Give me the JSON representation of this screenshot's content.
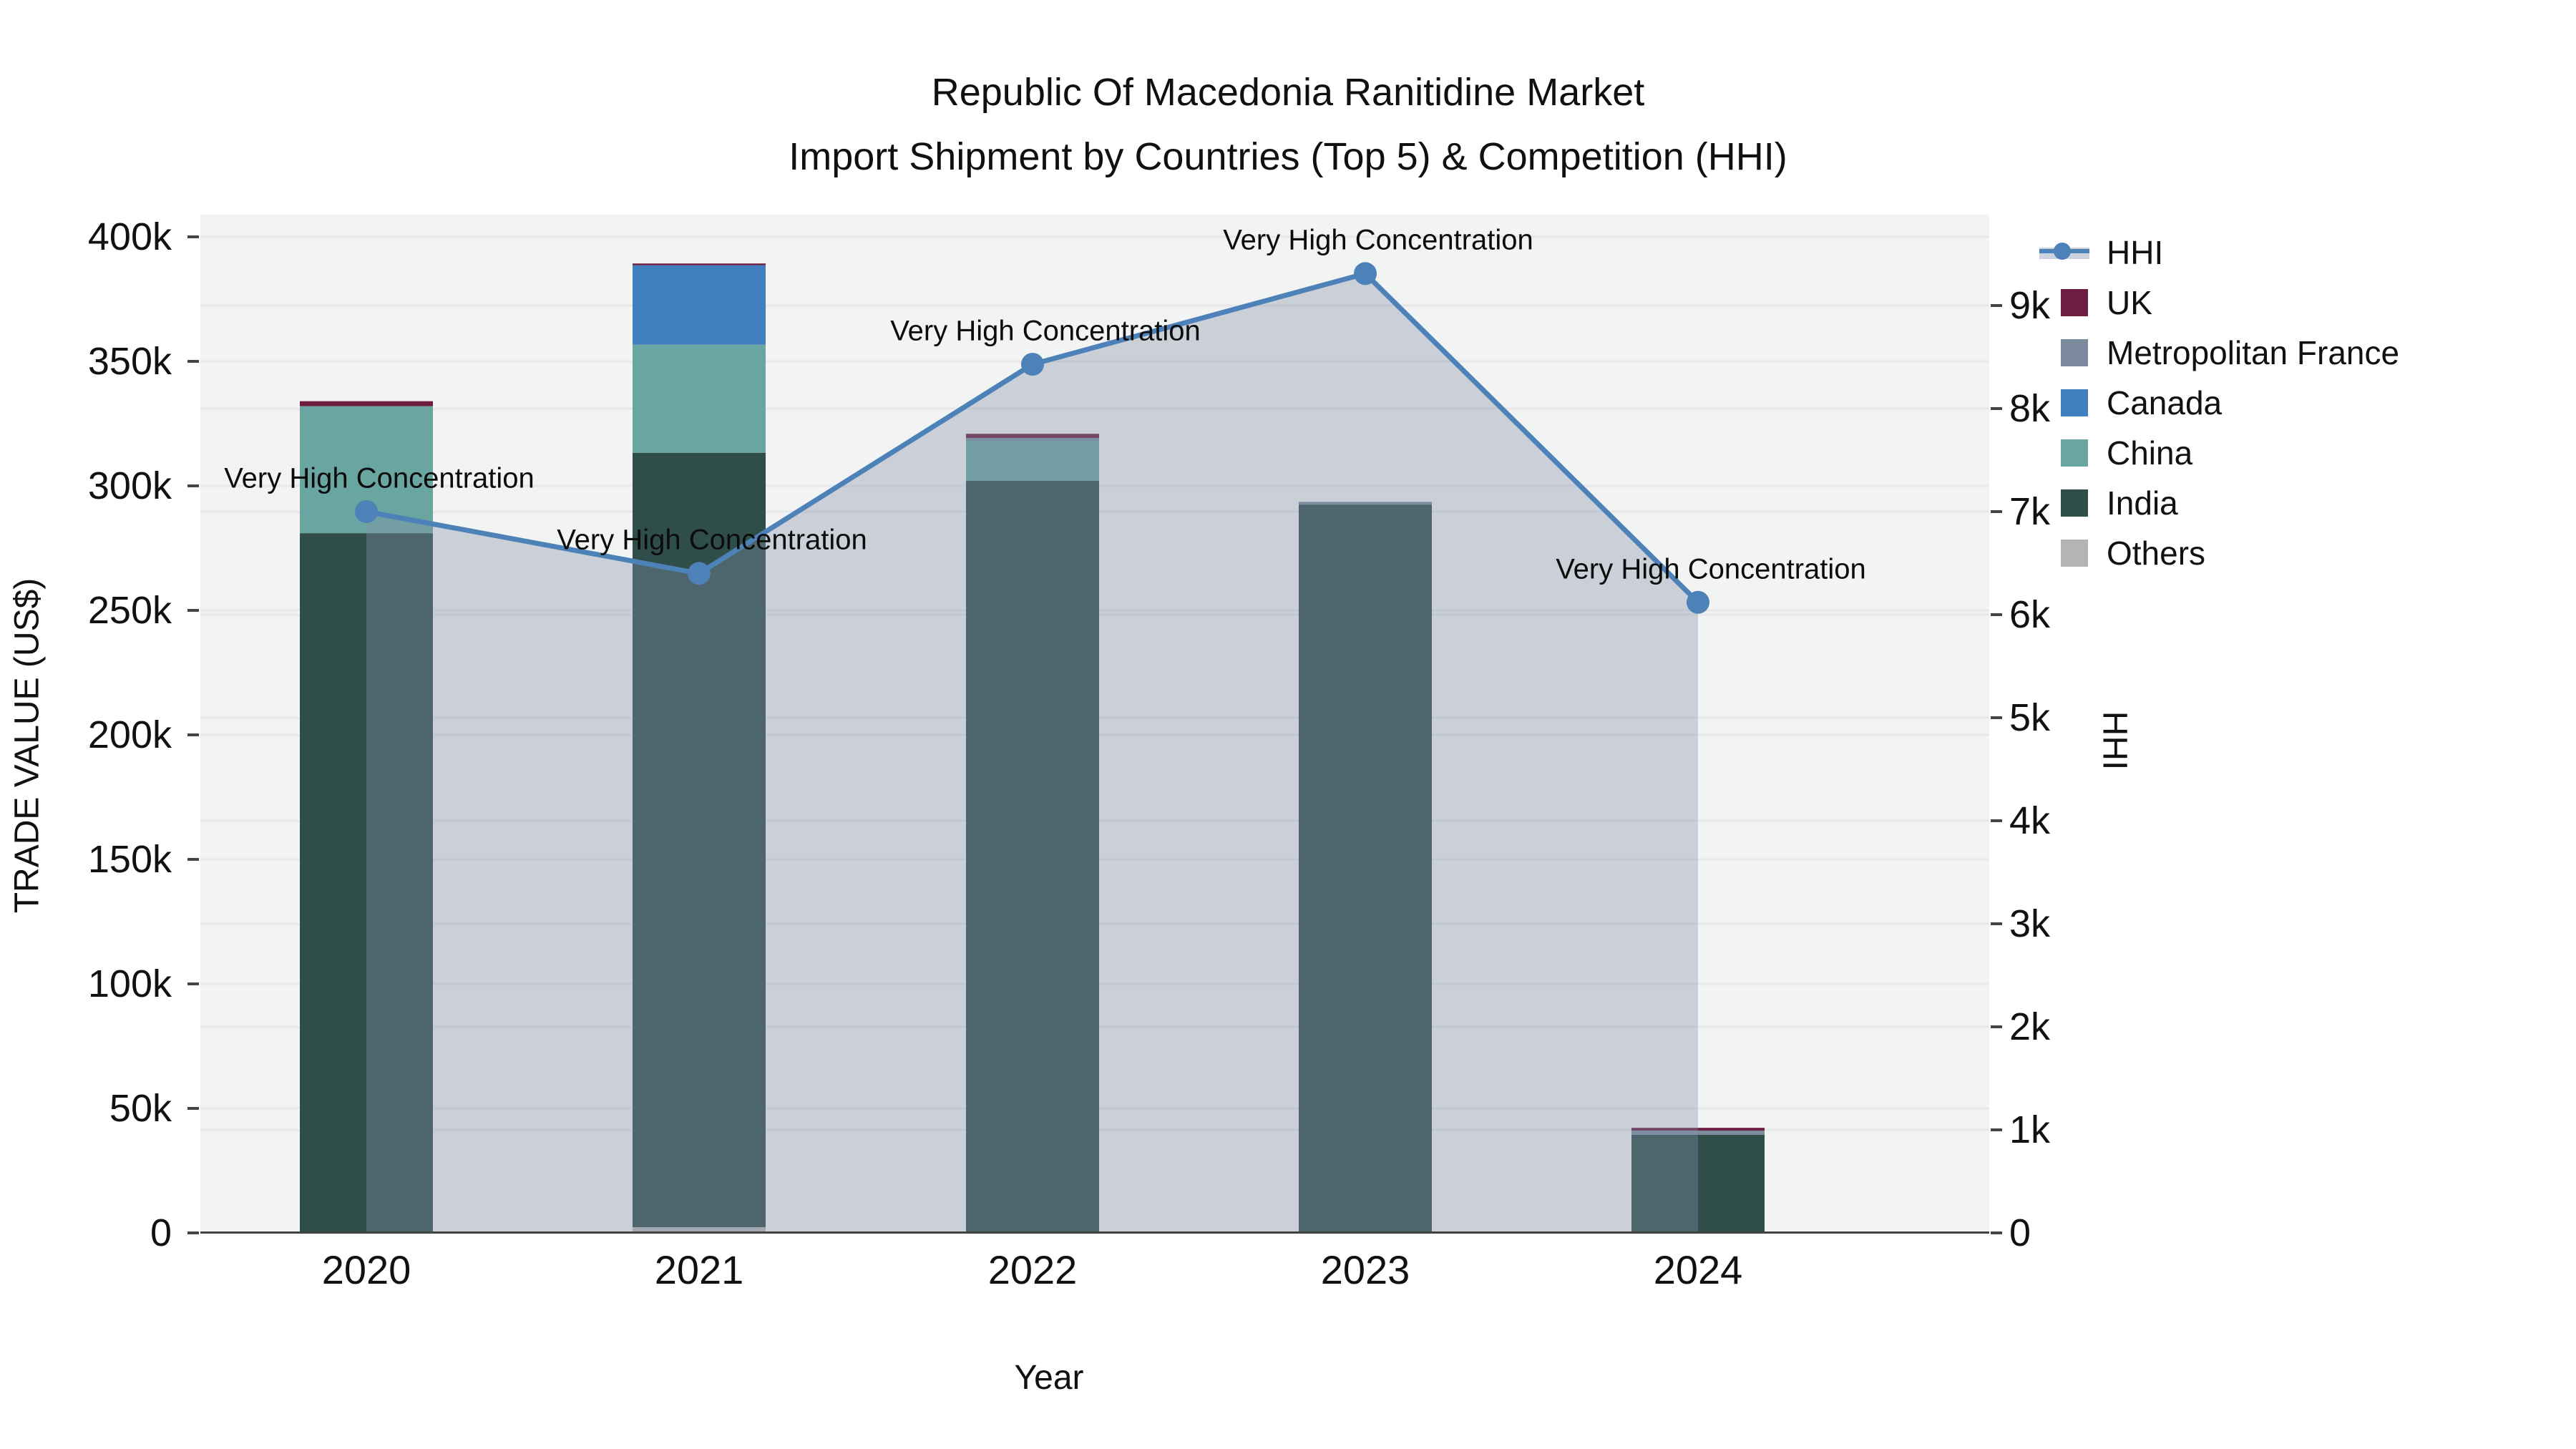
{
  "title": {
    "line1": "Republic Of Macedonia Ranitidine Market",
    "line2": "Import Shipment by Countries (Top 5) & Competition (HHI)"
  },
  "axes": {
    "x": {
      "title": "Year",
      "ticks": [
        "2020",
        "2021",
        "2022",
        "2023",
        "2024"
      ]
    },
    "y_left": {
      "title": "TRADE VALUE (US$)",
      "ticks": [
        "0",
        "50k",
        "100k",
        "150k",
        "200k",
        "250k",
        "300k",
        "350k",
        "400k"
      ]
    },
    "y_right": {
      "title": "HHI",
      "ticks": [
        "0",
        "1k",
        "2k",
        "3k",
        "4k",
        "5k",
        "6k",
        "7k",
        "8k",
        "9k"
      ]
    }
  },
  "annotation_text": "Very High Concentration",
  "legend": [
    {
      "label": "HHI",
      "color": "#4d82b8",
      "type": "line"
    },
    {
      "label": "UK",
      "color": "#6d1d3f",
      "type": "square"
    },
    {
      "label": "Metropolitan France",
      "color": "#7b8a9c",
      "type": "square"
    },
    {
      "label": "Canada",
      "color": "#4180bf",
      "type": "square"
    },
    {
      "label": "China",
      "color": "#6aa6a1",
      "type": "square"
    },
    {
      "label": "India",
      "color": "#2f4e4a",
      "type": "square"
    },
    {
      "label": "Others",
      "color": "#b4b4b6",
      "type": "square"
    }
  ],
  "colors": {
    "plot_bg": "#f2f3f3",
    "grid": "#e6e8e9",
    "axis_line": "#424242",
    "hhi_line": "#4d82b8",
    "hhi_area_fill": "rgba(131,143,168,0.36)"
  },
  "chart_data": {
    "type": "bar",
    "subtype": "stacked-bars-with-line",
    "categories": [
      "2020",
      "2021",
      "2022",
      "2023",
      "2024"
    ],
    "bar_series": [
      {
        "name": "Others",
        "color": "#b4b4b6",
        "values": [
          0,
          2300,
          0,
          0,
          0
        ]
      },
      {
        "name": "India",
        "color": "#2f4e4a",
        "values": [
          281000,
          311000,
          302000,
          292500,
          39400
        ]
      },
      {
        "name": "China",
        "color": "#6aa6a1",
        "values": [
          51000,
          43400,
          16100,
          0,
          0
        ]
      },
      {
        "name": "Canada",
        "color": "#4180bf",
        "values": [
          0,
          31900,
          0,
          0,
          0
        ]
      },
      {
        "name": "Metropolitan France",
        "color": "#7b8a9c",
        "values": [
          0,
          0,
          1100,
          1100,
          1700
        ]
      },
      {
        "name": "UK",
        "color": "#6d1d3f",
        "values": [
          2000,
          700,
          1700,
          0,
          1100
        ]
      }
    ],
    "line_series": {
      "name": "HHI",
      "values": [
        7000,
        6400,
        8430,
        9310,
        6120
      ],
      "axis": "right"
    },
    "bar_totals_approx": [
      334000,
      389300,
      320900,
      293600,
      42200
    ],
    "title": "Republic Of Macedonia Ranitidine Market — Import Shipment by Countries (Top 5) & Competition (HHI)",
    "xlabel": "Year",
    "ylabel_left": "TRADE VALUE (US$)",
    "ylabel_right": "HHI",
    "ylim_left": [
      0,
      400000
    ],
    "ylim_right": [
      0,
      9000
    ],
    "grid": "both-axes-light",
    "legend_position": "right",
    "annotations": [
      {
        "category": "2020",
        "text": "Very High Concentration"
      },
      {
        "category": "2021",
        "text": "Very High Concentration"
      },
      {
        "category": "2022",
        "text": "Very High Concentration"
      },
      {
        "category": "2023",
        "text": "Very High Concentration"
      },
      {
        "category": "2024",
        "text": "Very High Concentration"
      }
    ]
  }
}
